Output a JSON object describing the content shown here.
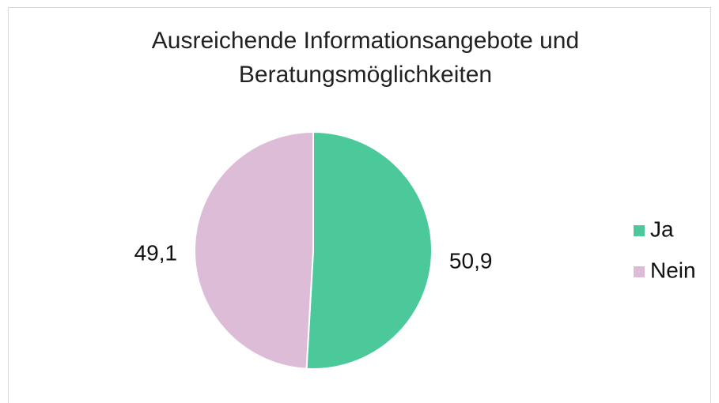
{
  "chart_data": {
    "type": "pie",
    "title": "Ausreichende Informationsangebote und Beratungsmöglichkeiten",
    "categories": [
      "Ja",
      "Nein"
    ],
    "values": [
      50.9,
      49.1
    ],
    "value_labels": [
      "50,9",
      "49,1"
    ],
    "colors": [
      "#4bc99b",
      "#dcbcd6"
    ],
    "legend": "right"
  }
}
